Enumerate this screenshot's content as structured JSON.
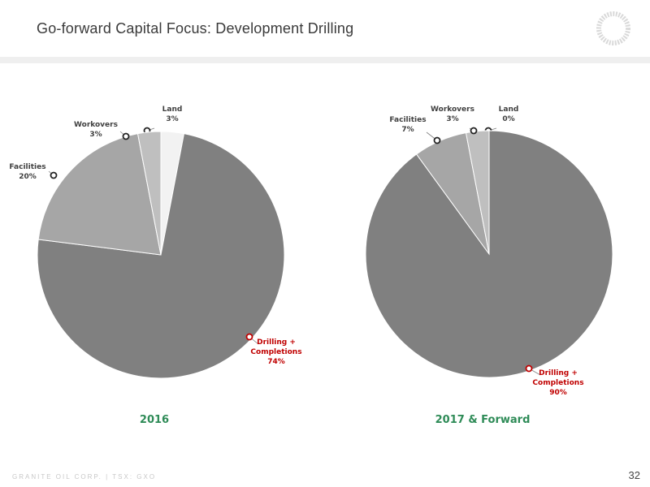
{
  "slide": {
    "title": "Go-forward Capital Focus: Development Drilling",
    "footer": "GRANITE OIL CORP. | TSX: GXO",
    "page_number": "32"
  },
  "colors": {
    "title_green": "#2e8b57",
    "highlight_red": "#c00000",
    "label_dark": "#404040"
  },
  "chart_data": [
    {
      "type": "pie",
      "title": "2016",
      "slices": [
        {
          "label": "Land",
          "value": 3,
          "display": "3%",
          "color": "#f2f2f2"
        },
        {
          "label": "Drilling + Completions",
          "value": 74,
          "display": "74%",
          "color": "#808080",
          "highlight": true
        },
        {
          "label": "Facilities",
          "value": 20,
          "display": "20%",
          "color": "#a6a6a6"
        },
        {
          "label": "Workovers",
          "value": 3,
          "display": "3%",
          "color": "#bfbfbf"
        }
      ]
    },
    {
      "type": "pie",
      "title": "2017 & Forward",
      "slices": [
        {
          "label": "Land",
          "value": 0,
          "display": "0%",
          "color": "#f2f2f2"
        },
        {
          "label": "Drilling + Completions",
          "value": 90,
          "display": "90%",
          "color": "#808080",
          "highlight": true
        },
        {
          "label": "Facilities",
          "value": 7,
          "display": "7%",
          "color": "#a6a6a6"
        },
        {
          "label": "Workovers",
          "value": 3,
          "display": "3%",
          "color": "#bfbfbf"
        }
      ]
    }
  ]
}
